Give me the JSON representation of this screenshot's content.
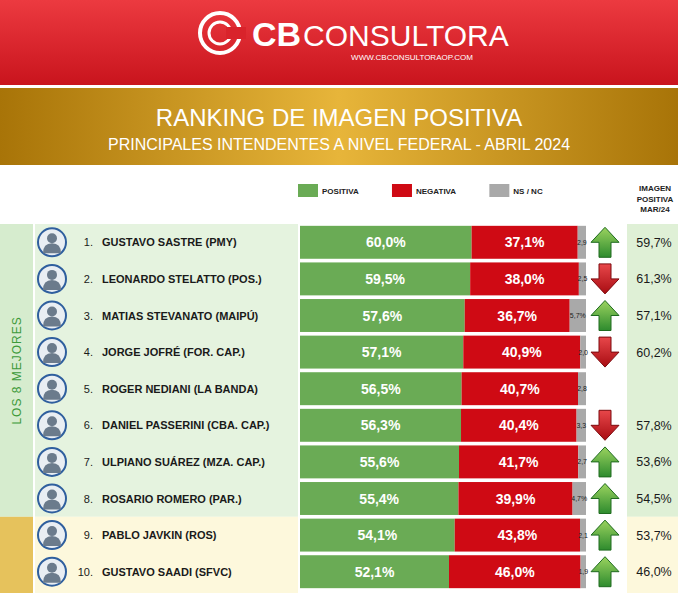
{
  "chart_data": {
    "type": "bar",
    "orientation": "horizontal",
    "stacked": true,
    "data_labels": true,
    "tick_labels": false,
    "legend": "top",
    "brand": {
      "name": "CB",
      "suffix": "CONSULTORA",
      "url": "WWW.CBCONSULTORAOP.COM"
    },
    "title": "RANKING DE IMAGEN POSITIVA",
    "subtitle": "PRINCIPALES INTENDENTES A NIVEL FEDERAL - ABRIL 2024",
    "group": {
      "label": "LOS 8 MEJORES",
      "rows": 8
    },
    "ranks": [
      "1.",
      "2.",
      "3.",
      "4.",
      "5.",
      "6.",
      "7.",
      "8.",
      "9.",
      "10."
    ],
    "categories": [
      "GUSTAVO SASTRE (PMY)",
      "LEONARDO STELATTO (POS.)",
      "MATIAS STEVANATO (MAIPÚ)",
      "JORGE JOFRÉ (FOR. CAP.)",
      "ROGER NEDIANI (LA BANDA)",
      "DANIEL PASSERINI (CBA. CAP.)",
      "ULPIANO SUÁREZ (MZA. CAP.)",
      "ROSARIO ROMERO (PAR.)",
      "PABLO JAVKIN (ROS)",
      "GUSTAVO SAADI (SFVC)"
    ],
    "xlim": [
      0,
      100
    ],
    "series": [
      {
        "name": "POSITIVA",
        "color": "#6aab55",
        "values": [
          60.0,
          59.5,
          57.6,
          57.1,
          56.5,
          56.3,
          55.6,
          55.4,
          54.1,
          52.1
        ],
        "value_labels": [
          "60,0%",
          "59,5%",
          "57,6%",
          "57,1%",
          "56,5%",
          "56,3%",
          "55,6%",
          "55,4%",
          "54,1%",
          "52,1%"
        ]
      },
      {
        "name": "NEGATIVA",
        "color": "#cf0a14",
        "values": [
          37.1,
          38.0,
          36.7,
          40.9,
          40.7,
          40.4,
          41.7,
          39.9,
          43.8,
          46.0
        ],
        "value_labels": [
          "37,1%",
          "38,0%",
          "36,7%",
          "40,9%",
          "40,7%",
          "40,4%",
          "41,7%",
          "39,9%",
          "43,8%",
          "46,0%"
        ]
      },
      {
        "name": "NS / NC",
        "color": "#a9a9a9",
        "values": [
          2.9,
          2.5,
          5.7,
          2.0,
          2.8,
          3.3,
          2.7,
          4.7,
          2.1,
          1.9
        ],
        "value_labels": [
          "2,9",
          "2,5",
          "5,7%",
          "2,0",
          "2,8",
          "3,3",
          "2,7",
          "4,7%",
          "2,1",
          "1,9"
        ]
      }
    ],
    "previous": {
      "label": "IMAGEN POSITIVA MAR/24",
      "values": [
        59.7,
        61.3,
        57.1,
        60.2,
        null,
        57.8,
        53.6,
        54.5,
        53.7,
        46.0
      ],
      "value_labels": [
        "59,7%",
        "61,3%",
        "57,1%",
        "60,2%",
        null,
        "57,8%",
        "53,6%",
        "54,5%",
        "53,7%",
        "46,0%"
      ]
    }
  }
}
